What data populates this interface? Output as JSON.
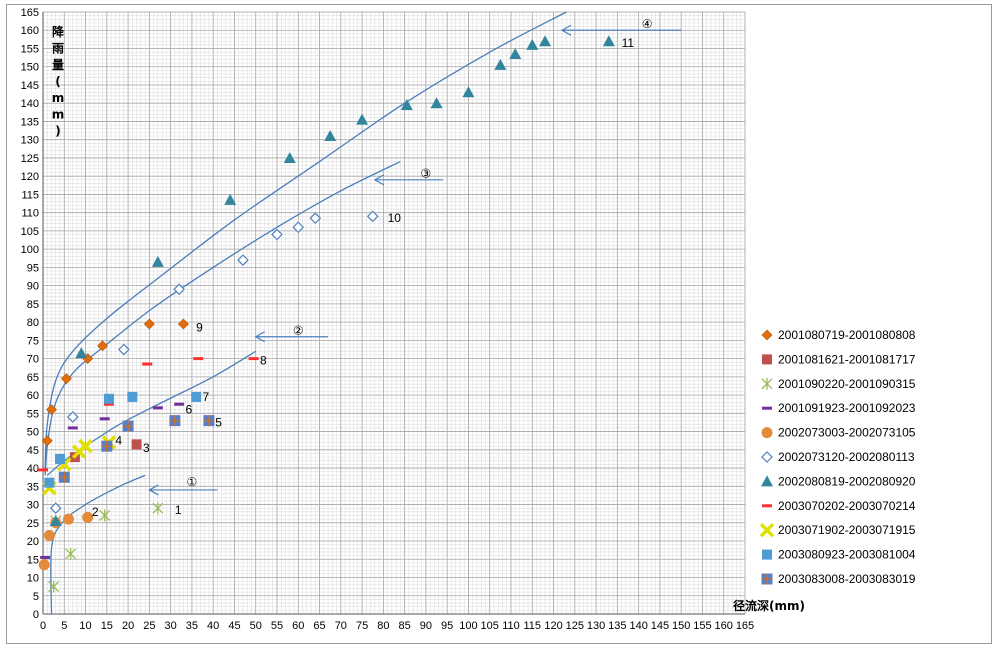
{
  "chart_data": {
    "type": "scatter",
    "title": "",
    "xlabel": "径流深(mm)",
    "ylabel": "降雨量(mm)",
    "xlim": [
      0,
      165
    ],
    "ylim": [
      0,
      165
    ],
    "x_ticks": [
      0,
      5,
      10,
      15,
      20,
      25,
      30,
      35,
      40,
      45,
      50,
      55,
      60,
      65,
      70,
      75,
      80,
      85,
      90,
      95,
      100,
      105,
      110,
      115,
      120,
      125,
      130,
      135,
      140,
      145,
      150,
      155,
      160,
      165
    ],
    "y_ticks": [
      0,
      5,
      10,
      15,
      20,
      25,
      30,
      35,
      40,
      45,
      50,
      55,
      60,
      65,
      70,
      75,
      80,
      85,
      90,
      95,
      100,
      105,
      110,
      115,
      120,
      125,
      130,
      135,
      140,
      145,
      150,
      155,
      160,
      165
    ],
    "grid": true,
    "legend_position": "right",
    "series": [
      {
        "name": "2001080719-2001080808",
        "marker": "diamond",
        "color": "#E46C0A",
        "points": [
          [
            1,
            47.5
          ],
          [
            2,
            56
          ],
          [
            5.5,
            64.5
          ],
          [
            10.5,
            70
          ],
          [
            14,
            73.5
          ],
          [
            25,
            79.5
          ],
          [
            33,
            79.5
          ]
        ]
      },
      {
        "name": "2001081621-2001081717",
        "marker": "square",
        "color": "#C0504D",
        "points": [
          [
            7.5,
            43
          ],
          [
            22,
            46.5
          ]
        ]
      },
      {
        "name": "2001090220-2001090315",
        "marker": "star",
        "color": "#9BBB59",
        "points": [
          [
            2.5,
            7.5
          ],
          [
            6.5,
            16.5
          ],
          [
            3,
            25.5
          ],
          [
            14.5,
            27
          ],
          [
            27,
            29
          ]
        ]
      },
      {
        "name": "2001091923-2001092023",
        "marker": "dash",
        "color": "#7030A0",
        "points": [
          [
            0.5,
            15.5
          ],
          [
            7,
            51
          ],
          [
            14.5,
            53.5
          ],
          [
            27,
            56.5
          ],
          [
            32,
            57.5
          ]
        ]
      },
      {
        "name": "2002073003-2002073105",
        "marker": "circle",
        "color": "#E38B3A",
        "points": [
          [
            0.3,
            13.5
          ],
          [
            1.5,
            21.5
          ],
          [
            3,
            25
          ],
          [
            6,
            26
          ],
          [
            10.5,
            26.5
          ]
        ]
      },
      {
        "name": "2002073120-2002080113",
        "marker": "diamond-open",
        "color": "#4F81BD",
        "points": [
          [
            3,
            29
          ],
          [
            7,
            54
          ],
          [
            19,
            72.5
          ],
          [
            32,
            89
          ],
          [
            47,
            97
          ],
          [
            55,
            104
          ],
          [
            60,
            106
          ],
          [
            64,
            108.5
          ],
          [
            77.5,
            109
          ]
        ]
      },
      {
        "name": "2002080819-2002080920",
        "marker": "triangle",
        "color": "#31859C",
        "points": [
          [
            3,
            25.5
          ],
          [
            9,
            71.5
          ],
          [
            27,
            96.5
          ],
          [
            44,
            113.5
          ],
          [
            58,
            125
          ],
          [
            67.5,
            131
          ],
          [
            75,
            135.5
          ],
          [
            85.5,
            139.5
          ],
          [
            92.5,
            140
          ],
          [
            100,
            143
          ],
          [
            107.5,
            150.5
          ],
          [
            111,
            153.5
          ],
          [
            115,
            156
          ],
          [
            118,
            157
          ],
          [
            133,
            157
          ]
        ]
      },
      {
        "name": "2003070202-2003070214",
        "marker": "dash",
        "color": "#FF3030",
        "points": [
          [
            0,
            39.5
          ],
          [
            15.5,
            57.5
          ],
          [
            24.5,
            68.5
          ],
          [
            36.5,
            70
          ],
          [
            49.5,
            70
          ]
        ]
      },
      {
        "name": "2003071902-2003071915",
        "marker": "x",
        "color": "#E0E000",
        "points": [
          [
            1.5,
            34.5
          ],
          [
            5,
            41
          ],
          [
            8.5,
            44.5
          ],
          [
            10,
            46
          ],
          [
            15.5,
            47
          ]
        ]
      },
      {
        "name": "2003080923-2003081004",
        "marker": "square",
        "color": "#4F9BD4",
        "points": [
          [
            1.5,
            36
          ],
          [
            4,
            42.5
          ],
          [
            15.5,
            59
          ],
          [
            21,
            59.5
          ],
          [
            36,
            59.5
          ]
        ]
      },
      {
        "name": "2003083008-2003083019",
        "marker": "square-grid",
        "color": "#5B7FC4",
        "points": [
          [
            5,
            37.5
          ],
          [
            15,
            46
          ],
          [
            20,
            51.5
          ],
          [
            31,
            53
          ],
          [
            39,
            53
          ]
        ]
      }
    ],
    "point_labels": [
      {
        "text": "1",
        "x": 31,
        "y": 28.5
      },
      {
        "text": "2",
        "x": 11.5,
        "y": 28
      },
      {
        "text": "3",
        "x": 23.5,
        "y": 45.5
      },
      {
        "text": "4",
        "x": 17,
        "y": 47.5
      },
      {
        "text": "5",
        "x": 40.5,
        "y": 52.5
      },
      {
        "text": "6",
        "x": 33.5,
        "y": 56
      },
      {
        "text": "7",
        "x": 37.5,
        "y": 59.5
      },
      {
        "text": "8",
        "x": 51,
        "y": 69.5
      },
      {
        "text": "9",
        "x": 36,
        "y": 78.5
      },
      {
        "text": "10",
        "x": 81,
        "y": 108.5
      },
      {
        "text": "11",
        "x": 136,
        "y": 156.5
      }
    ],
    "envelope_curves": [
      {
        "label": "①",
        "points": [
          [
            2,
            0
          ],
          [
            2,
            18
          ],
          [
            4.5,
            25
          ],
          [
            10,
            30
          ],
          [
            18,
            35
          ],
          [
            24,
            38
          ]
        ],
        "arrow": {
          "from": [
            41,
            34
          ],
          "to": [
            25,
            34
          ],
          "label_at": [
            35,
            36.5
          ]
        }
      },
      {
        "label": "②",
        "points": [
          [
            1,
            38
          ],
          [
            5,
            42
          ],
          [
            10,
            46
          ],
          [
            18,
            52
          ],
          [
            28,
            58
          ],
          [
            40,
            65
          ],
          [
            50,
            72
          ]
        ],
        "arrow": {
          "from": [
            67,
            76
          ],
          "to": [
            50,
            76
          ],
          "label_at": [
            60,
            78
          ]
        }
      },
      {
        "label": "③",
        "points": [
          [
            0.5,
            38
          ],
          [
            1.2,
            48
          ],
          [
            3,
            58
          ],
          [
            7,
            66
          ],
          [
            14,
            73
          ],
          [
            26,
            84
          ],
          [
            40,
            95
          ],
          [
            55,
            106
          ],
          [
            70,
            116
          ],
          [
            84,
            124
          ]
        ],
        "arrow": {
          "from": [
            94,
            119
          ],
          "to": [
            78,
            119
          ],
          "label_at": [
            90,
            121
          ]
        }
      },
      {
        "label": "④",
        "points": [
          [
            0.5,
            40
          ],
          [
            1,
            52
          ],
          [
            3,
            64
          ],
          [
            7,
            72
          ],
          [
            15,
            81
          ],
          [
            27,
            92
          ],
          [
            45,
            108
          ],
          [
            65,
            124
          ],
          [
            85,
            140
          ],
          [
            105,
            154
          ],
          [
            123,
            165
          ]
        ],
        "arrow": {
          "from": [
            150,
            160
          ],
          "to": [
            122,
            160
          ],
          "label_at": [
            142,
            162
          ]
        }
      }
    ]
  }
}
